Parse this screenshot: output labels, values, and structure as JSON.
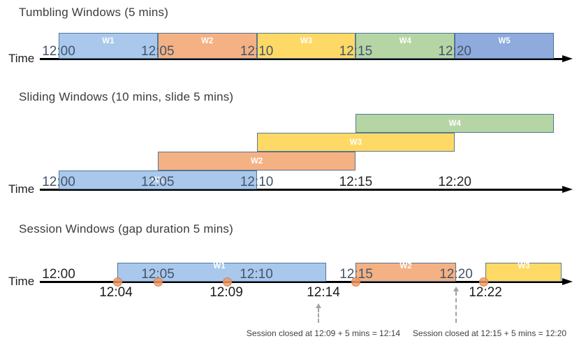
{
  "colors": {
    "blue": "#A9C8EB",
    "orange": "#F4B183",
    "yellow": "#FFD966",
    "green": "#B6D5A4",
    "periwinkle": "#8FAADC",
    "bar_border": "#3E6992",
    "axis": "#000000",
    "event_dot": "#F29861",
    "tick_on_bar": "#44546A",
    "tick_on_white": "#262626",
    "annotation_text": "#404040",
    "annotation_arrow": "#A3A3A3"
  },
  "sections": [
    {
      "key": "tumbling",
      "title": "Tumbling Windows (5 mins)",
      "time_label": "Time",
      "windows": [
        {
          "label": "W1",
          "start_min": 0,
          "end_min": 5,
          "color": "blue",
          "row": 0
        },
        {
          "label": "W2",
          "start_min": 5,
          "end_min": 10,
          "color": "orange",
          "row": 0
        },
        {
          "label": "W3",
          "start_min": 10,
          "end_min": 15,
          "color": "yellow",
          "row": 0
        },
        {
          "label": "W4",
          "start_min": 15,
          "end_min": 20,
          "color": "green",
          "row": 0
        },
        {
          "label": "W5",
          "start_min": 20,
          "end_min": 25,
          "color": "periwinkle",
          "row": 0
        }
      ],
      "ticks": [
        {
          "label": "12:00",
          "min": 0,
          "variant": "bar"
        },
        {
          "label": "12:05",
          "min": 5,
          "variant": "bar"
        },
        {
          "label": "12:10",
          "min": 10,
          "variant": "bar"
        },
        {
          "label": "12:15",
          "min": 15,
          "variant": "bar"
        },
        {
          "label": "12:20",
          "min": 20,
          "variant": "bar"
        }
      ]
    },
    {
      "key": "sliding",
      "title": "Sliding Windows (10 mins, slide 5 mins)",
      "time_label": "Time",
      "windows": [
        {
          "label": "W1",
          "start_min": 0,
          "end_min": 10,
          "color": "blue",
          "row": 0
        },
        {
          "label": "W2",
          "start_min": 5,
          "end_min": 15,
          "color": "orange",
          "row": 1
        },
        {
          "label": "W3",
          "start_min": 10,
          "end_min": 20,
          "color": "yellow",
          "row": 2
        },
        {
          "label": "W4",
          "start_min": 15,
          "end_min": 25,
          "color": "green",
          "row": 3
        }
      ],
      "ticks": [
        {
          "label": "12:00",
          "min": 0,
          "variant": "bar"
        },
        {
          "label": "12:05",
          "min": 5,
          "variant": "bar"
        },
        {
          "label": "12:10",
          "min": 10,
          "variant": "bar"
        },
        {
          "label": "12:15",
          "min": 15,
          "variant": "plain"
        },
        {
          "label": "12:20",
          "min": 20,
          "variant": "plain"
        }
      ]
    },
    {
      "key": "session",
      "title": "Session Windows (gap duration 5 mins)",
      "time_label": "Time",
      "windows": [
        {
          "label": "W1",
          "color": "blue"
        },
        {
          "label": "W2",
          "color": "orange"
        },
        {
          "label": "W3",
          "color": "yellow"
        }
      ],
      "ticks": [
        {
          "label": "12:00",
          "variant": "plain"
        },
        {
          "label": "12:05",
          "variant": "bar"
        },
        {
          "label": "12:10",
          "variant": "bar"
        },
        {
          "label": "12:15",
          "variant": "bar"
        },
        {
          "label": "12:20",
          "variant": "bar"
        }
      ],
      "below_axis_labels": [
        "12:04",
        "12:09",
        "12:14",
        "12:22"
      ],
      "event_dot_count": 5,
      "annotations": [
        {
          "text": "Session closed at 12:09 + 5 mins = 12:14"
        },
        {
          "text": "Session closed at 12:15 + 5 mins = 12:20"
        }
      ]
    }
  ]
}
